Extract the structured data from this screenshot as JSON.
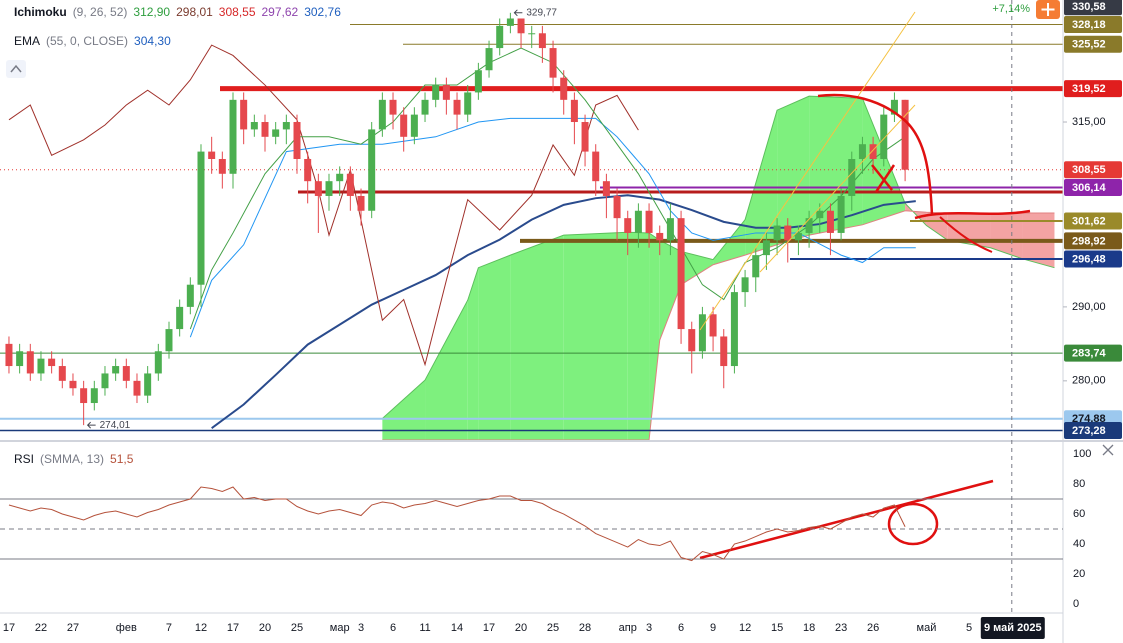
{
  "chart_data": {
    "type": "candlestick",
    "indicators": [
      {
        "name": "Ichimoku",
        "params": "(9, 26, 52)",
        "readings": [
          {
            "text": "312,90",
            "color": "#2e9e3e"
          },
          {
            "text": "298,01",
            "color": "#7a3b2e"
          },
          {
            "text": "308,55",
            "color": "#d62728"
          },
          {
            "text": "297,62",
            "color": "#8e44ad"
          },
          {
            "text": "302,76",
            "color": "#1f5fbf"
          }
        ]
      },
      {
        "name": "EMA",
        "params": "(55, 0, CLOSE)",
        "readings": [
          {
            "text": "304,30",
            "color": "#1f5fbf"
          }
        ]
      }
    ],
    "change_label": "+7,14%",
    "xlim": [
      -0.84,
      98.8
    ],
    "ylim": [
      272,
      331.5
    ],
    "xticks": [
      {
        "value": 0,
        "label": "17"
      },
      {
        "value": 3,
        "label": "22"
      },
      {
        "value": 6,
        "label": "27"
      },
      {
        "value": 11,
        "label": "фев"
      },
      {
        "value": 15,
        "label": "7"
      },
      {
        "value": 18,
        "label": "12"
      },
      {
        "value": 21,
        "label": "17"
      },
      {
        "value": 24,
        "label": "20"
      },
      {
        "value": 27,
        "label": "25"
      },
      {
        "value": 31,
        "label": "мар"
      },
      {
        "value": 33,
        "label": "3"
      },
      {
        "value": 36,
        "label": "6"
      },
      {
        "value": 39,
        "label": "11"
      },
      {
        "value": 42,
        "label": "14"
      },
      {
        "value": 45,
        "label": "17"
      },
      {
        "value": 48,
        "label": "20"
      },
      {
        "value": 51,
        "label": "25"
      },
      {
        "value": 54,
        "label": "28"
      },
      {
        "value": 58,
        "label": "апр"
      },
      {
        "value": 60,
        "label": "3"
      },
      {
        "value": 63,
        "label": "6"
      },
      {
        "value": 66,
        "label": "9"
      },
      {
        "value": 69,
        "label": "12"
      },
      {
        "value": 72,
        "label": "15"
      },
      {
        "value": 75,
        "label": "18"
      },
      {
        "value": 78,
        "label": "23"
      },
      {
        "value": 81,
        "label": "26"
      },
      {
        "value": 86,
        "label": "май"
      },
      {
        "value": 90,
        "label": "5"
      }
    ],
    "cursor": {
      "value": 94,
      "label": "9 май 2025"
    },
    "yticks": [
      {
        "value": 315,
        "label": "315,00"
      },
      {
        "value": 290,
        "label": "290,00"
      },
      {
        "value": 280,
        "label": "280,00"
      }
    ],
    "price_labels": [
      {
        "value": 330.58,
        "label": "330,58",
        "color": "#363a45",
        "line": false
      },
      {
        "value": 328.18,
        "label": "328,18",
        "color": "#8a7a2a",
        "line": true
      },
      {
        "value": 325.52,
        "label": "325,52",
        "color": "#8a7a2a",
        "line": true
      },
      {
        "value": 319.52,
        "label": "319,52",
        "color": "#e01e1e",
        "line": true
      },
      {
        "value": 308.55,
        "label": "308,55",
        "color": "#e53935",
        "line": true
      },
      {
        "value": 306.14,
        "label": "306,14",
        "color": "#8e24aa",
        "line": true
      },
      {
        "value": 301.62,
        "label": "301,62",
        "color": "#9a8a2a",
        "line": true
      },
      {
        "value": 298.92,
        "label": "298,92",
        "color": "#7a5a1a",
        "line": true
      },
      {
        "value": 296.48,
        "label": "296,48",
        "color": "#1a3a8a",
        "line": true
      },
      {
        "value": 283.74,
        "label": "283,74",
        "color": "#3a8a3a",
        "line": true
      },
      {
        "value": 274.88,
        "label": "274,88",
        "color": "#9cc8ee",
        "line": true
      },
      {
        "value": 273.28,
        "label": "273,28",
        "color": "#1a3a7a",
        "line": true
      }
    ],
    "annotations": [
      {
        "x": 47,
        "value": 329.77,
        "label": "329,77"
      },
      {
        "x": 7,
        "value": 274.01,
        "label": "274,01"
      }
    ],
    "up_color": "#4caf50",
    "down_color": "#e5484d",
    "candles": {
      "x": [
        0,
        1,
        2,
        3,
        4,
        5,
        6,
        7,
        8,
        9,
        10,
        11,
        12,
        13,
        14,
        15,
        16,
        17,
        18,
        19,
        20,
        21,
        22,
        23,
        24,
        25,
        26,
        27,
        28,
        29,
        30,
        31,
        32,
        33,
        34,
        35,
        36,
        37,
        38,
        39,
        40,
        41,
        42,
        43,
        44,
        45,
        46,
        47,
        48,
        49,
        50,
        51,
        52,
        53,
        54,
        55,
        56,
        57,
        58,
        59,
        60,
        61,
        62,
        63,
        64,
        65,
        66,
        67,
        68,
        69,
        70,
        71,
        72,
        73,
        74,
        75,
        76,
        77,
        78,
        79,
        80,
        81,
        82,
        83,
        84
      ],
      "open": [
        285,
        282,
        284,
        281,
        283,
        282,
        280,
        279,
        277,
        279,
        281,
        282,
        280,
        278,
        281,
        284,
        287,
        290,
        293,
        311,
        310,
        308,
        318,
        314,
        315,
        313,
        314,
        315,
        310,
        307,
        305,
        307,
        308,
        305,
        303,
        314,
        318,
        316,
        313,
        316,
        318,
        320,
        318,
        316,
        319,
        322,
        325,
        328,
        329,
        327,
        327,
        325,
        321,
        318,
        315,
        311,
        307,
        305,
        302,
        300,
        303,
        300,
        299,
        302,
        287,
        284,
        289,
        286,
        282,
        292,
        294,
        297,
        299,
        301,
        299,
        300,
        302,
        303,
        300,
        305,
        310,
        312,
        310,
        316,
        318
      ],
      "high": [
        286,
        285,
        285,
        284,
        284,
        283,
        281,
        280,
        280,
        282,
        283,
        283,
        281,
        282,
        285,
        288,
        291,
        294,
        312,
        313,
        311,
        319,
        319,
        316,
        316,
        315,
        316,
        316,
        311,
        308,
        308,
        309,
        309,
        306,
        315,
        319,
        319,
        317,
        317,
        319,
        321,
        321,
        319,
        320,
        323,
        326,
        329,
        329.77,
        329,
        328,
        328,
        326,
        322,
        319,
        316,
        312,
        308,
        306,
        303,
        304,
        304,
        301,
        304,
        303,
        288,
        290,
        290,
        287,
        293,
        295,
        298,
        300,
        302,
        302,
        301,
        303,
        304,
        304,
        306,
        311,
        313,
        313,
        317,
        319,
        318
      ],
      "low": [
        281,
        281,
        280,
        280,
        281,
        279,
        278,
        274.01,
        276,
        278,
        280,
        279,
        277,
        277,
        280,
        283,
        286,
        289,
        290,
        308,
        306,
        306,
        312,
        313,
        311,
        312,
        312,
        308,
        304,
        300,
        303,
        305,
        303,
        301,
        302,
        313,
        314,
        311,
        312,
        315,
        317,
        316,
        314,
        315,
        318,
        321,
        324,
        327,
        325,
        325,
        323,
        319,
        316,
        312,
        309,
        305,
        302,
        299,
        297,
        298,
        298,
        297,
        297,
        285,
        281,
        283,
        284,
        279,
        281,
        290,
        292,
        295,
        297,
        296,
        297,
        298,
        300,
        297,
        299,
        303,
        308,
        308,
        309,
        315,
        307
      ],
      "close": [
        282,
        284,
        281,
        283,
        282,
        280,
        279,
        277,
        279,
        281,
        282,
        280,
        278,
        281,
        284,
        287,
        290,
        293,
        311,
        310,
        308,
        318,
        314,
        315,
        313,
        314,
        315,
        310,
        307,
        305,
        307,
        308,
        305,
        303,
        314,
        318,
        316,
        313,
        316,
        318,
        320,
        318,
        316,
        319,
        322,
        325,
        328,
        329,
        327,
        327,
        325,
        321,
        318,
        315,
        311,
        307,
        305,
        302,
        300,
        303,
        300,
        299,
        302,
        287,
        284,
        289,
        286,
        282,
        292,
        294,
        297,
        299,
        301,
        299,
        300,
        302,
        303,
        300,
        305,
        310,
        312,
        310,
        316,
        318,
        308.55
      ]
    },
    "lines": [
      {
        "name": "EMA",
        "color": "#2a4b8d",
        "width": 2,
        "x": [
          19,
          22,
          25,
          28,
          31,
          34,
          37,
          40,
          43,
          46,
          49,
          52,
          55,
          58,
          61,
          64,
          67,
          70,
          73,
          76,
          79,
          82,
          85
        ],
        "values": [
          273.6,
          276.8,
          280.8,
          284.9,
          287.6,
          290.3,
          292.3,
          294.3,
          297,
          299.1,
          301.8,
          303.8,
          304.7,
          305.1,
          304.5,
          303.1,
          301.5,
          300.7,
          300.7,
          301.2,
          302.4,
          303.8,
          304.3
        ]
      },
      {
        "name": "Chikou",
        "color": "#a0302a",
        "width": 1,
        "x": [
          0,
          2,
          4,
          7,
          9,
          11,
          13,
          15,
          17,
          19,
          21,
          24,
          27,
          29,
          30,
          32,
          35,
          37,
          39,
          41,
          43,
          46,
          49,
          51,
          53,
          55,
          57,
          59
        ],
        "values": [
          315.3,
          317.3,
          310.5,
          312.6,
          314.6,
          317.3,
          319.3,
          317.3,
          320.7,
          325.4,
          324,
          320,
          315.3,
          305.8,
          299.7,
          308.5,
          288.2,
          291,
          282.2,
          293.6,
          304.5,
          300.4,
          305.1,
          311.9,
          307.8,
          317.3,
          318.6,
          313.9
        ]
      },
      {
        "name": "Kijun",
        "color": "#2196f3",
        "width": 1,
        "x": [
          17,
          19,
          22,
          26,
          31,
          35,
          40,
          44,
          47,
          51,
          55,
          57,
          60,
          62,
          64,
          66,
          70,
          74,
          78,
          80,
          82,
          85
        ],
        "values": [
          285.9,
          293.6,
          298.4,
          311,
          312,
          312,
          313,
          315,
          315.5,
          315.5,
          315.5,
          313,
          308,
          303,
          300,
          299,
          300,
          300,
          297,
          296,
          298,
          298
        ]
      },
      {
        "name": "Tenkan",
        "color": "#43a047",
        "width": 1,
        "x": [
          17,
          19,
          21,
          24,
          27,
          30,
          33,
          36,
          39,
          42,
          45,
          48,
          51,
          54,
          57,
          59,
          61,
          63,
          65,
          67,
          69,
          72,
          75,
          78,
          81,
          84
        ],
        "values": [
          287,
          295,
          300,
          308,
          313,
          313,
          312,
          315,
          320,
          320,
          323,
          325,
          323,
          318,
          312,
          308,
          303,
          298,
          293,
          291,
          296,
          298,
          301,
          305,
          310,
          313
        ]
      }
    ],
    "cloud": {
      "x": [
        35,
        39,
        43,
        44,
        47,
        52,
        58,
        60,
        61,
        63,
        66,
        69,
        72,
        75,
        80,
        84,
        86,
        88,
        92,
        95,
        98
      ],
      "span_a": [
        274.9,
        280.1,
        290.9,
        295.3,
        297,
        299.7,
        300.1,
        300,
        299,
        297.5,
        296.4,
        301.8,
        316.6,
        318.5,
        318.2,
        304,
        301,
        299,
        298,
        296.5,
        295.3
      ],
      "span_b": [
        272,
        272,
        272,
        272,
        272,
        272,
        272,
        272,
        285.5,
        293,
        295.7,
        297,
        298.4,
        299.7,
        301.1,
        303,
        302.8,
        302.7,
        302.7,
        302.7,
        302.7
      ],
      "up_color": "#7ef07e",
      "down_color": "#f3a3a3"
    },
    "rsi": {
      "name": "RSI",
      "params": "(SMMA, 13)",
      "reading": "51,5",
      "color": "#b5523b",
      "ylim": [
        -5.3,
        106
      ],
      "yticks": [
        0,
        20,
        40,
        60,
        80,
        100
      ],
      "levels": [
        70,
        50,
        30
      ],
      "values": [
        66,
        64,
        62,
        64,
        63,
        60,
        58,
        56,
        59,
        61,
        62,
        60,
        58,
        61,
        63,
        66,
        68,
        70,
        78,
        77,
        75,
        78,
        70,
        71,
        69,
        70,
        70,
        65,
        62,
        60,
        62,
        63,
        61,
        59,
        66,
        68,
        67,
        64,
        66,
        67,
        69,
        67,
        65,
        67,
        69,
        70,
        72,
        72,
        69,
        69,
        67,
        63,
        60,
        56,
        52,
        47,
        44,
        41,
        38,
        43,
        40,
        39,
        42,
        31,
        29,
        35,
        33,
        30,
        40,
        42,
        45,
        48,
        50,
        48,
        49,
        51,
        52,
        50,
        54,
        58,
        60,
        58,
        64,
        66,
        51.5
      ]
    }
  }
}
